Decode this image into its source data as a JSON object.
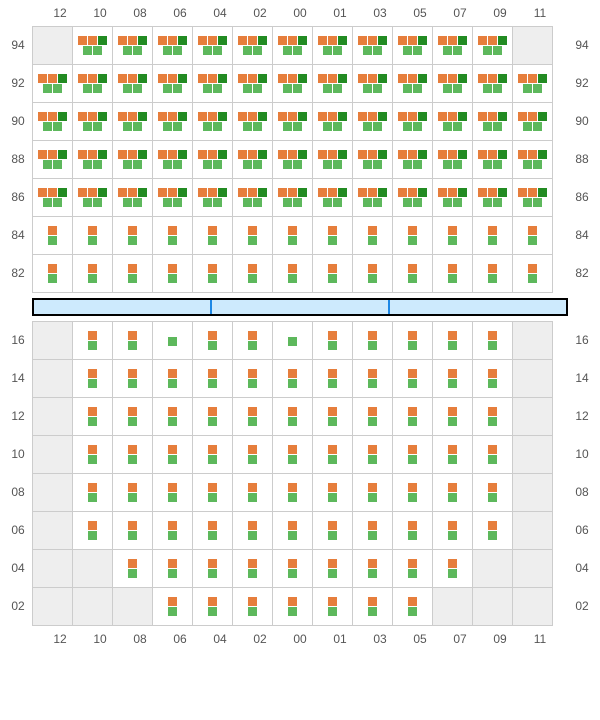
{
  "colors": {
    "orange": "#e67e3c",
    "green": "#5db85c",
    "darkgreen": "#228b22",
    "blank_bg": "#eeeeee",
    "border": "#cccccc",
    "stage_bg": "#cdeafd",
    "stage_border": "#1e88e5"
  },
  "columns": [
    "12",
    "10",
    "08",
    "06",
    "04",
    "02",
    "00",
    "01",
    "03",
    "05",
    "07",
    "09",
    "11"
  ],
  "top_section": {
    "rows": [
      "94",
      "92",
      "90",
      "88",
      "86",
      "84",
      "82"
    ],
    "cells": {
      "94": [
        {
          "blank": true
        },
        {
          "t": 3,
          "b": 2
        },
        {
          "t": 3,
          "b": 2
        },
        {
          "t": 3,
          "b": 2
        },
        {
          "t": 3,
          "b": 2
        },
        {
          "t": 3,
          "b": 2
        },
        {
          "t": 3,
          "b": 2
        },
        {
          "t": 3,
          "b": 2
        },
        {
          "t": 3,
          "b": 2
        },
        {
          "t": 3,
          "b": 2
        },
        {
          "t": 3,
          "b": 2
        },
        {
          "t": 3,
          "b": 2
        },
        {
          "blank": true
        }
      ],
      "92": [
        {
          "t": 3,
          "b": 2
        },
        {
          "t": 3,
          "b": 2
        },
        {
          "t": 3,
          "b": 2
        },
        {
          "t": 3,
          "b": 2
        },
        {
          "t": 3,
          "b": 2
        },
        {
          "t": 3,
          "b": 2
        },
        {
          "t": 3,
          "b": 2
        },
        {
          "t": 3,
          "b": 2
        },
        {
          "t": 3,
          "b": 2
        },
        {
          "t": 3,
          "b": 2
        },
        {
          "t": 3,
          "b": 2
        },
        {
          "t": 3,
          "b": 2
        },
        {
          "t": 3,
          "b": 2
        }
      ],
      "90": [
        {
          "t": 3,
          "b": 2
        },
        {
          "t": 3,
          "b": 2
        },
        {
          "t": 3,
          "b": 2
        },
        {
          "t": 3,
          "b": 2
        },
        {
          "t": 3,
          "b": 2
        },
        {
          "t": 3,
          "b": 2
        },
        {
          "t": 3,
          "b": 2
        },
        {
          "t": 3,
          "b": 2
        },
        {
          "t": 3,
          "b": 2
        },
        {
          "t": 3,
          "b": 2
        },
        {
          "t": 3,
          "b": 2
        },
        {
          "t": 3,
          "b": 2
        },
        {
          "t": 3,
          "b": 2
        }
      ],
      "88": [
        {
          "t": 3,
          "b": 2
        },
        {
          "t": 3,
          "b": 2
        },
        {
          "t": 3,
          "b": 2
        },
        {
          "t": 3,
          "b": 2
        },
        {
          "t": 3,
          "b": 2
        },
        {
          "t": 3,
          "b": 2
        },
        {
          "t": 3,
          "b": 2
        },
        {
          "t": 3,
          "b": 2
        },
        {
          "t": 3,
          "b": 2
        },
        {
          "t": 3,
          "b": 2
        },
        {
          "t": 3,
          "b": 2
        },
        {
          "t": 3,
          "b": 2
        },
        {
          "t": 3,
          "b": 2
        }
      ],
      "86": [
        {
          "t": 3,
          "b": 2
        },
        {
          "t": 3,
          "b": 2
        },
        {
          "t": 3,
          "b": 2
        },
        {
          "t": 3,
          "b": 2
        },
        {
          "t": 3,
          "b": 2
        },
        {
          "t": 3,
          "b": 2
        },
        {
          "t": 3,
          "b": 2
        },
        {
          "t": 3,
          "b": 2
        },
        {
          "t": 3,
          "b": 2
        },
        {
          "t": 3,
          "b": 2
        },
        {
          "t": 3,
          "b": 2
        },
        {
          "t": 3,
          "b": 2
        },
        {
          "t": 3,
          "b": 2
        }
      ],
      "84": [
        {
          "t": 1,
          "b": 1
        },
        {
          "t": 1,
          "b": 1
        },
        {
          "t": 1,
          "b": 1
        },
        {
          "t": 1,
          "b": 1
        },
        {
          "t": 1,
          "b": 1
        },
        {
          "t": 1,
          "b": 1
        },
        {
          "t": 1,
          "b": 1
        },
        {
          "t": 1,
          "b": 1
        },
        {
          "t": 1,
          "b": 1
        },
        {
          "t": 1,
          "b": 1
        },
        {
          "t": 1,
          "b": 1
        },
        {
          "t": 1,
          "b": 1
        },
        {
          "t": 1,
          "b": 1
        }
      ],
      "82": [
        {
          "t": 1,
          "b": 1
        },
        {
          "t": 1,
          "b": 1
        },
        {
          "t": 1,
          "b": 1
        },
        {
          "t": 1,
          "b": 1
        },
        {
          "t": 1,
          "b": 1
        },
        {
          "t": 1,
          "b": 1
        },
        {
          "t": 1,
          "b": 1
        },
        {
          "t": 1,
          "b": 1
        },
        {
          "t": 1,
          "b": 1
        },
        {
          "t": 1,
          "b": 1
        },
        {
          "t": 1,
          "b": 1
        },
        {
          "t": 1,
          "b": 1
        },
        {
          "t": 1,
          "b": 1
        }
      ]
    }
  },
  "stage_segments": 3,
  "bottom_section": {
    "rows": [
      "16",
      "14",
      "12",
      "10",
      "08",
      "06",
      "04",
      "02"
    ],
    "cells": {
      "16": [
        {
          "blank": true
        },
        {
          "t": 1,
          "b": 1
        },
        {
          "t": 1,
          "b": 1
        },
        {
          "t": 0,
          "b": 1
        },
        {
          "t": 1,
          "b": 1
        },
        {
          "t": 1,
          "b": 1
        },
        {
          "t": 0,
          "b": 1
        },
        {
          "t": 1,
          "b": 1
        },
        {
          "t": 1,
          "b": 1
        },
        {
          "t": 1,
          "b": 1
        },
        {
          "t": 1,
          "b": 1
        },
        {
          "t": 1,
          "b": 1
        },
        {
          "blank": true
        }
      ],
      "14": [
        {
          "blank": true
        },
        {
          "t": 1,
          "b": 1
        },
        {
          "t": 1,
          "b": 1
        },
        {
          "t": 1,
          "b": 1
        },
        {
          "t": 1,
          "b": 1
        },
        {
          "t": 1,
          "b": 1
        },
        {
          "t": 1,
          "b": 1
        },
        {
          "t": 1,
          "b": 1
        },
        {
          "t": 1,
          "b": 1
        },
        {
          "t": 1,
          "b": 1
        },
        {
          "t": 1,
          "b": 1
        },
        {
          "t": 1,
          "b": 1
        },
        {
          "blank": true
        }
      ],
      "12": [
        {
          "blank": true
        },
        {
          "t": 1,
          "b": 1
        },
        {
          "t": 1,
          "b": 1
        },
        {
          "t": 1,
          "b": 1
        },
        {
          "t": 1,
          "b": 1
        },
        {
          "t": 1,
          "b": 1
        },
        {
          "t": 1,
          "b": 1
        },
        {
          "t": 1,
          "b": 1
        },
        {
          "t": 1,
          "b": 1
        },
        {
          "t": 1,
          "b": 1
        },
        {
          "t": 1,
          "b": 1
        },
        {
          "t": 1,
          "b": 1
        },
        {
          "blank": true
        }
      ],
      "10": [
        {
          "blank": true
        },
        {
          "t": 1,
          "b": 1
        },
        {
          "t": 1,
          "b": 1
        },
        {
          "t": 1,
          "b": 1
        },
        {
          "t": 1,
          "b": 1
        },
        {
          "t": 1,
          "b": 1
        },
        {
          "t": 1,
          "b": 1
        },
        {
          "t": 1,
          "b": 1
        },
        {
          "t": 1,
          "b": 1
        },
        {
          "t": 1,
          "b": 1
        },
        {
          "t": 1,
          "b": 1
        },
        {
          "t": 1,
          "b": 1
        },
        {
          "blank": true
        }
      ],
      "08": [
        {
          "blank": true
        },
        {
          "t": 1,
          "b": 1
        },
        {
          "t": 1,
          "b": 1
        },
        {
          "t": 1,
          "b": 1
        },
        {
          "t": 1,
          "b": 1
        },
        {
          "t": 1,
          "b": 1
        },
        {
          "t": 1,
          "b": 1
        },
        {
          "t": 1,
          "b": 1
        },
        {
          "t": 1,
          "b": 1
        },
        {
          "t": 1,
          "b": 1
        },
        {
          "t": 1,
          "b": 1
        },
        {
          "t": 1,
          "b": 1
        },
        {
          "blank": true
        }
      ],
      "06": [
        {
          "blank": true
        },
        {
          "t": 1,
          "b": 1
        },
        {
          "t": 1,
          "b": 1
        },
        {
          "t": 1,
          "b": 1
        },
        {
          "t": 1,
          "b": 1
        },
        {
          "t": 1,
          "b": 1
        },
        {
          "t": 1,
          "b": 1
        },
        {
          "t": 1,
          "b": 1
        },
        {
          "t": 1,
          "b": 1
        },
        {
          "t": 1,
          "b": 1
        },
        {
          "t": 1,
          "b": 1
        },
        {
          "t": 1,
          "b": 1
        },
        {
          "blank": true
        }
      ],
      "04": [
        {
          "blank": true
        },
        {
          "blank": true
        },
        {
          "t": 1,
          "b": 1
        },
        {
          "t": 1,
          "b": 1
        },
        {
          "t": 1,
          "b": 1
        },
        {
          "t": 1,
          "b": 1
        },
        {
          "t": 1,
          "b": 1
        },
        {
          "t": 1,
          "b": 1
        },
        {
          "t": 1,
          "b": 1
        },
        {
          "t": 1,
          "b": 1
        },
        {
          "t": 1,
          "b": 1
        },
        {
          "blank": true
        },
        {
          "blank": true
        }
      ],
      "02": [
        {
          "blank": true
        },
        {
          "blank": true
        },
        {
          "blank": true
        },
        {
          "t": 1,
          "b": 1
        },
        {
          "t": 1,
          "b": 1
        },
        {
          "t": 1,
          "b": 1
        },
        {
          "t": 1,
          "b": 1
        },
        {
          "t": 1,
          "b": 1
        },
        {
          "t": 1,
          "b": 1
        },
        {
          "t": 1,
          "b": 1
        },
        {
          "blank": true
        },
        {
          "blank": true
        },
        {
          "blank": true
        }
      ]
    }
  },
  "marker_patterns": {
    "top3": [
      "orange",
      "orange",
      "darkgreen"
    ],
    "bottom2": [
      "green",
      "green"
    ],
    "single_top": [
      "orange"
    ],
    "single_bottom": [
      "green"
    ]
  }
}
